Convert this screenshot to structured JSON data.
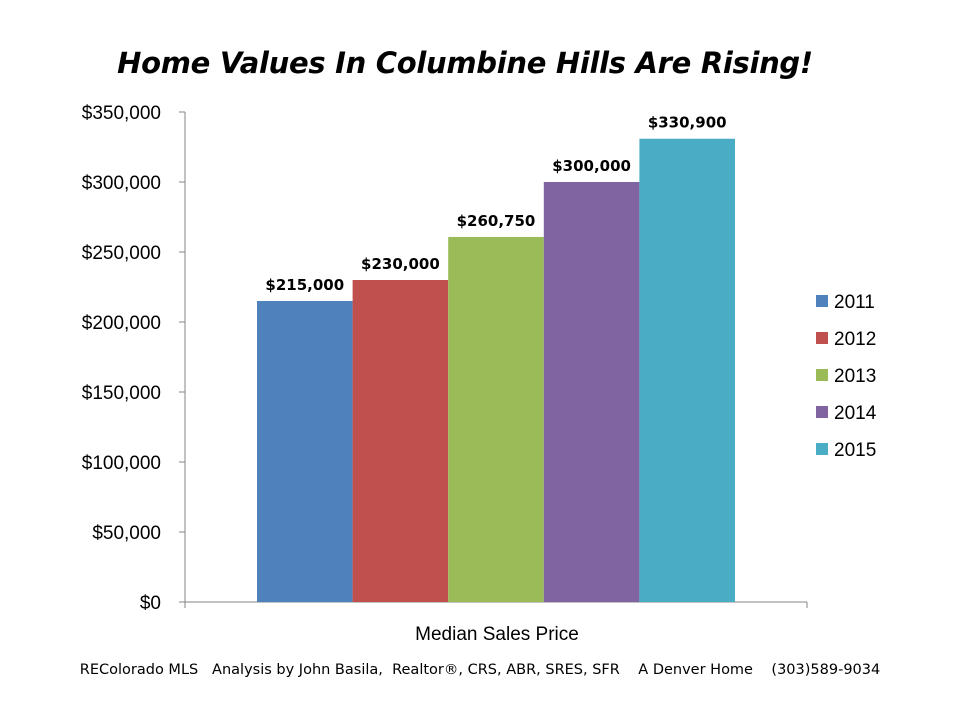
{
  "chart_data": {
    "type": "bar",
    "title": "Home Values In Columbine Hills Are Rising!",
    "xlabel": "Median Sales Price",
    "ylabel": "",
    "ylim": [
      0,
      350000
    ],
    "y_ticks": [
      "$0",
      "$50,000",
      "$100,000",
      "$150,000",
      "$200,000",
      "$250,000",
      "$300,000",
      "$350,000"
    ],
    "y_tick_values": [
      0,
      50000,
      100000,
      150000,
      200000,
      250000,
      300000,
      350000
    ],
    "categories": [
      "Median Sales Price"
    ],
    "series": [
      {
        "name": "2011",
        "values": [
          215000
        ],
        "label": "$215,000",
        "color": "#4F81BD"
      },
      {
        "name": "2012",
        "values": [
          230000
        ],
        "label": "$230,000",
        "color": "#C0504D"
      },
      {
        "name": "2013",
        "values": [
          260750
        ],
        "label": "$260,750",
        "color": "#9BBB59"
      },
      {
        "name": "2014",
        "values": [
          300000
        ],
        "label": "$300,000",
        "color": "#8064A2"
      },
      {
        "name": "2015",
        "values": [
          330900
        ],
        "label": "$330,900",
        "color": "#4BACC6"
      }
    ],
    "legend_position": "right",
    "grid": false
  },
  "footer": {
    "text": "REColorado MLS   Analysis by John Basila,  Realtor®, CRS, ABR, SRES, SFR    A Denver Home    (303)589-9034"
  }
}
